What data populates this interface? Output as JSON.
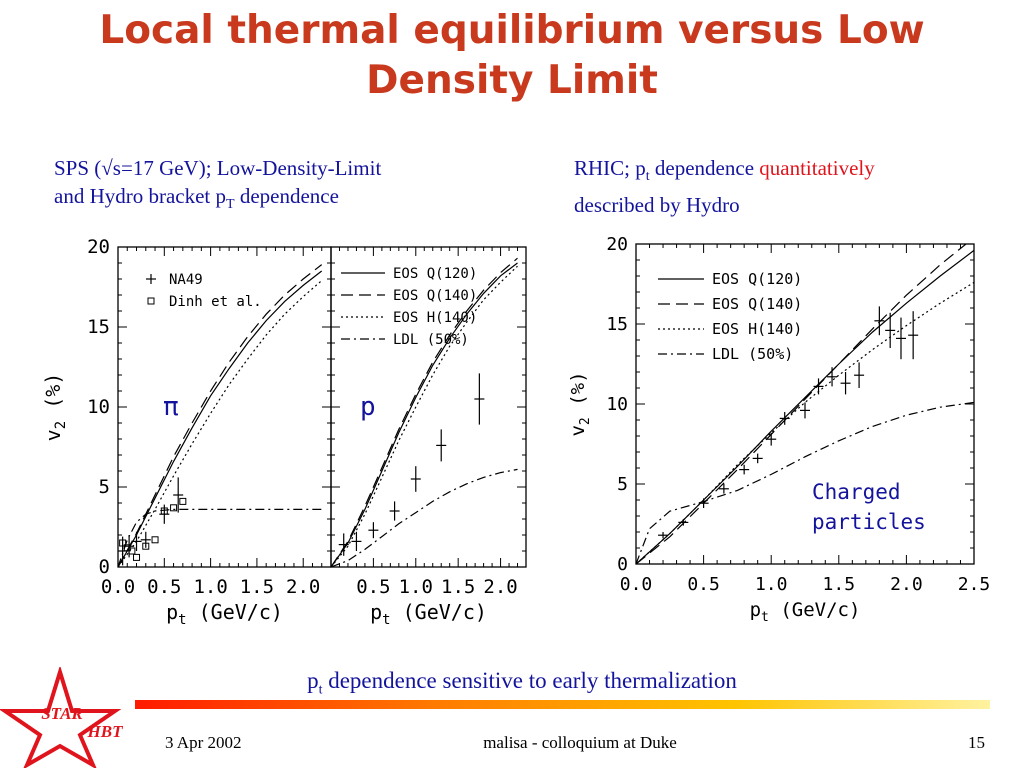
{
  "slide": {
    "title": "Local thermal equilibrium versus Low Density Limit",
    "left_caption": {
      "line1": "SPS (√s=17 GeV); Low-Density-Limit",
      "line2_a": "and Hydro bracket p",
      "line2_sub": "T",
      "line2_b": " dependence"
    },
    "right_caption": {
      "line1_a": "RHIC; p",
      "line1_sub": "t",
      "line1_b": " dependence ",
      "line1_red": "quantitatively",
      "line2": "described by Hydro"
    },
    "bottom_note": {
      "a": "p",
      "sub": "t",
      "b": " dependence sensitive to early thermalization"
    },
    "footer": {
      "date": "3 Apr 2002",
      "center": "malisa - colloquium at Duke",
      "page": "15"
    },
    "logo": {
      "line1": "STAR",
      "line2": "HBT"
    }
  },
  "colors": {
    "title": "#c8391d",
    "caption": "#13139c",
    "highlight": "#e0141c",
    "logo": "#e0141c"
  },
  "chart_data": [
    {
      "type": "line",
      "panel_label": "π",
      "xlabel": "p_t (GeV/c)",
      "ylabel": "v_2 (%)",
      "xlim": [
        0,
        2.3
      ],
      "ylim": [
        0,
        20
      ],
      "xticks": [
        "0.0",
        "0.5",
        "1.0",
        "1.5",
        "2.0"
      ],
      "yticks": [
        "0",
        "5",
        "10",
        "15",
        "20"
      ],
      "legend": [
        "NA49",
        "Dinh et al."
      ],
      "series": [
        {
          "name": "EOS Q(120)",
          "style": "solid",
          "x": [
            0,
            0.2,
            0.4,
            0.6,
            0.8,
            1.0,
            1.2,
            1.4,
            1.6,
            1.8,
            2.0,
            2.2
          ],
          "y": [
            0,
            2.0,
            4.3,
            6.6,
            8.7,
            10.7,
            12.4,
            14.0,
            15.4,
            16.6,
            17.6,
            18.5
          ]
        },
        {
          "name": "EOS Q(140)",
          "style": "dashed",
          "x": [
            0,
            0.2,
            0.4,
            0.6,
            0.8,
            1.0,
            1.2,
            1.4,
            1.6,
            1.8,
            2.0,
            2.2
          ],
          "y": [
            0,
            2.1,
            4.5,
            6.9,
            9.0,
            11.0,
            12.8,
            14.4,
            15.8,
            17.0,
            18.0,
            18.9
          ]
        },
        {
          "name": "EOS H(140)",
          "style": "dotted",
          "x": [
            0,
            0.2,
            0.4,
            0.6,
            0.8,
            1.0,
            1.2,
            1.4,
            1.6,
            1.8,
            2.0,
            2.2
          ],
          "y": [
            0,
            1.6,
            3.6,
            5.7,
            7.7,
            9.6,
            11.4,
            13.0,
            14.5,
            15.8,
            16.9,
            17.9
          ]
        },
        {
          "name": "LDL (50%)",
          "style": "dashdot",
          "x": [
            0,
            0.1,
            0.2,
            0.3,
            0.4,
            0.6,
            0.8,
            1.2,
            1.6,
            2.0,
            2.2
          ],
          "y": [
            0,
            1.7,
            2.8,
            3.3,
            3.5,
            3.6,
            3.6,
            3.6,
            3.6,
            3.6,
            3.6
          ]
        },
        {
          "name": "NA49",
          "style": "cross",
          "x": [
            0.05,
            0.12,
            0.2,
            0.3,
            0.5,
            0.65
          ],
          "y": [
            1.0,
            1.3,
            1.6,
            1.7,
            3.3,
            4.5
          ],
          "err": [
            0.9,
            0.7,
            0.6,
            0.5,
            0.6,
            1.1
          ]
        },
        {
          "name": "Dinh et al.",
          "style": "square",
          "x": [
            0.05,
            0.1,
            0.15,
            0.2,
            0.3,
            0.4,
            0.5,
            0.6,
            0.7
          ],
          "y": [
            1.5,
            1.2,
            1.0,
            0.6,
            1.3,
            1.7,
            3.5,
            3.7,
            4.1
          ]
        }
      ]
    },
    {
      "type": "line",
      "panel_label": "p",
      "xlabel": "p_t (GeV/c)",
      "ylabel": "",
      "xlim": [
        0,
        2.3
      ],
      "ylim": [
        0,
        20
      ],
      "xticks": [
        "0.5",
        "1.0",
        "1.5",
        "2.0"
      ],
      "yticks": [],
      "legend": [
        "EOS Q(120)",
        "EOS Q(140)",
        "EOS H(140)",
        "LDL (50%)"
      ],
      "series": [
        {
          "name": "EOS Q(120)",
          "style": "solid",
          "x": [
            0,
            0.2,
            0.4,
            0.6,
            0.8,
            1.0,
            1.2,
            1.4,
            1.6,
            1.8,
            2.0,
            2.2
          ],
          "y": [
            0,
            1.5,
            3.6,
            6.0,
            8.4,
            10.6,
            12.6,
            14.3,
            15.8,
            17.1,
            18.2,
            19.0
          ]
        },
        {
          "name": "EOS Q(140)",
          "style": "dashed",
          "x": [
            0,
            0.2,
            0.4,
            0.6,
            0.8,
            1.0,
            1.2,
            1.4,
            1.6,
            1.8,
            2.0,
            2.2
          ],
          "y": [
            0,
            1.6,
            3.8,
            6.2,
            8.6,
            10.8,
            12.8,
            14.5,
            16.0,
            17.3,
            18.4,
            19.3
          ]
        },
        {
          "name": "EOS H(140)",
          "style": "dotted",
          "x": [
            0,
            0.2,
            0.4,
            0.6,
            0.8,
            1.0,
            1.2,
            1.4,
            1.6,
            1.8,
            2.0,
            2.2
          ],
          "y": [
            0,
            1.3,
            3.3,
            5.6,
            7.9,
            10.0,
            12.0,
            13.8,
            15.3,
            16.7,
            17.8,
            18.8
          ]
        },
        {
          "name": "LDL (50%)",
          "style": "dashdot",
          "x": [
            0,
            0.2,
            0.4,
            0.6,
            0.8,
            1.0,
            1.2,
            1.4,
            1.6,
            1.8,
            2.0,
            2.2
          ],
          "y": [
            0,
            0.4,
            1.1,
            1.9,
            2.7,
            3.4,
            4.1,
            4.7,
            5.2,
            5.6,
            5.9,
            6.1
          ]
        },
        {
          "name": "data",
          "style": "cross",
          "x": [
            0.15,
            0.3,
            0.5,
            0.75,
            1.0,
            1.3,
            1.75
          ],
          "y": [
            1.4,
            1.6,
            2.3,
            3.5,
            5.5,
            7.6,
            10.5
          ],
          "err": [
            0.7,
            0.6,
            0.5,
            0.6,
            0.8,
            1.0,
            1.6
          ]
        }
      ]
    },
    {
      "type": "line",
      "panel_label": "Charged particles",
      "xlabel": "p_t (GeV/c)",
      "ylabel": "v_2 (%)",
      "xlim": [
        0,
        2.5
      ],
      "ylim": [
        0,
        20
      ],
      "xticks": [
        "0.0",
        "0.5",
        "1.0",
        "1.5",
        "2.0",
        "2.5"
      ],
      "yticks": [
        "0",
        "5",
        "10",
        "15",
        "20"
      ],
      "legend": [
        "EOS Q(120)",
        "EOS Q(140)",
        "EOS H(140)",
        "LDL (50%)"
      ],
      "series": [
        {
          "name": "EOS Q(120)",
          "style": "solid",
          "x": [
            0,
            0.25,
            0.5,
            0.75,
            1.0,
            1.25,
            1.5,
            1.75,
            2.0,
            2.25,
            2.5
          ],
          "y": [
            0,
            1.9,
            4.0,
            6.1,
            8.3,
            10.4,
            12.5,
            14.5,
            16.3,
            18.0,
            19.6
          ]
        },
        {
          "name": "EOS Q(140)",
          "style": "dashed",
          "x": [
            0,
            0.25,
            0.5,
            0.75,
            1.0,
            1.25,
            1.5,
            1.75,
            2.0,
            2.25,
            2.5
          ],
          "y": [
            0,
            1.7,
            3.8,
            5.9,
            8.1,
            10.3,
            12.5,
            14.7,
            16.8,
            18.7,
            20.4
          ]
        },
        {
          "name": "EOS H(140)",
          "style": "dotted",
          "x": [
            0,
            0.25,
            0.5,
            0.75,
            1.0,
            1.25,
            1.5,
            1.75,
            2.0,
            2.25,
            2.5
          ],
          "y": [
            0,
            1.9,
            4.0,
            6.2,
            8.2,
            10.1,
            11.8,
            13.4,
            14.9,
            16.3,
            17.6
          ]
        },
        {
          "name": "LDL (50%)",
          "style": "dashdot",
          "x": [
            0,
            0.1,
            0.25,
            0.5,
            0.75,
            1.0,
            1.25,
            1.5,
            1.75,
            2.0,
            2.25,
            2.5
          ],
          "y": [
            0,
            2.2,
            3.3,
            3.9,
            4.6,
            5.6,
            6.7,
            7.7,
            8.6,
            9.3,
            9.8,
            10.1
          ]
        },
        {
          "name": "data",
          "style": "cross",
          "x": [
            0.2,
            0.35,
            0.5,
            0.65,
            0.8,
            0.9,
            1.0,
            1.1,
            1.25,
            1.35,
            1.45,
            1.55,
            1.65,
            1.8,
            1.88,
            1.96,
            2.05
          ],
          "y": [
            1.8,
            2.6,
            3.8,
            4.7,
            5.9,
            6.6,
            7.8,
            9.1,
            9.6,
            11.1,
            11.7,
            11.3,
            11.8,
            15.2,
            14.6,
            14.1,
            14.3
          ],
          "err": [
            0.2,
            0.2,
            0.3,
            0.3,
            0.3,
            0.3,
            0.4,
            0.4,
            0.5,
            0.5,
            0.6,
            0.7,
            0.8,
            0.9,
            1.1,
            1.3,
            1.5
          ]
        }
      ]
    }
  ]
}
